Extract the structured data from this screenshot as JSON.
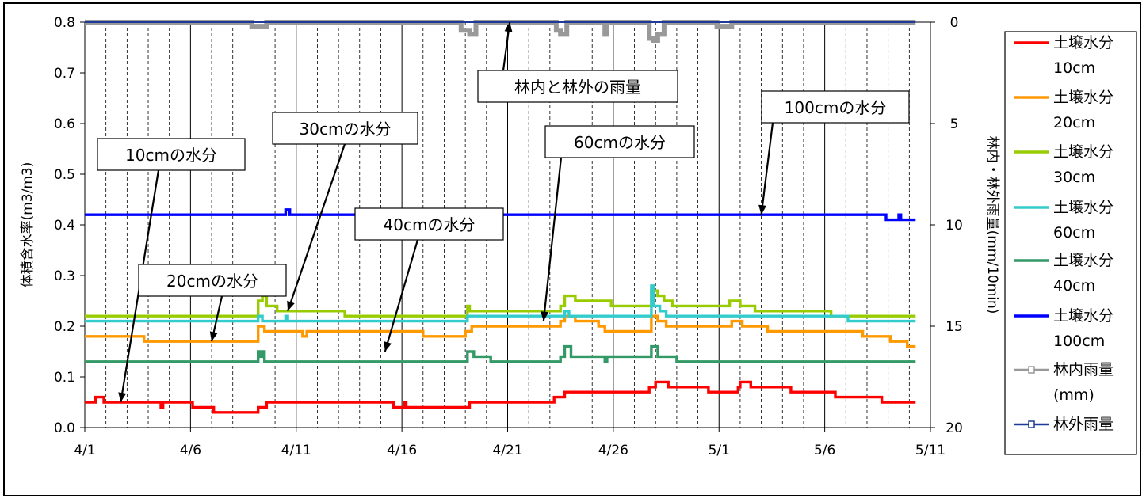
{
  "chart_data": {
    "type": "line",
    "y_left_label": "体積含水率(m3/m3)",
    "y_right_label": "林内・林外雨量(mm/10min)",
    "y_left_ticks": [
      "0.0",
      "0.1",
      "0.2",
      "0.3",
      "0.4",
      "0.5",
      "0.6",
      "0.7",
      "0.8"
    ],
    "y_right_ticks": [
      "0",
      "5",
      "10",
      "15",
      "20"
    ],
    "ylim_left": [
      0,
      0.8
    ],
    "ylim_right": [
      0,
      20
    ],
    "y_right_inverted": true,
    "x_ticks": [
      "4/1",
      "4/6",
      "4/11",
      "4/16",
      "4/21",
      "4/26",
      "5/1",
      "5/6",
      "5/11"
    ],
    "xlim_days": [
      0,
      40
    ],
    "grid": "vertical daily dashed, 5-day solid",
    "legend_position": "right",
    "series": [
      {
        "name": "土壌水分",
        "name2": "10cm",
        "color": "#ff0000",
        "points": [
          [
            0,
            0.05
          ],
          [
            0.4,
            0.05
          ],
          [
            0.5,
            0.06
          ],
          [
            0.8,
            0.06
          ],
          [
            0.9,
            0.05
          ],
          [
            3.5,
            0.05
          ],
          [
            3.6,
            0.04
          ],
          [
            3.7,
            0.05
          ],
          [
            5,
            0.05
          ],
          [
            5.1,
            0.04
          ],
          [
            6,
            0.04
          ],
          [
            6.1,
            0.03
          ],
          [
            8.1,
            0.03
          ],
          [
            8.2,
            0.04
          ],
          [
            8.5,
            0.04
          ],
          [
            8.6,
            0.05
          ],
          [
            14.5,
            0.05
          ],
          [
            14.6,
            0.04
          ],
          [
            15,
            0.04
          ],
          [
            15.1,
            0.05
          ],
          [
            15.2,
            0.04
          ],
          [
            18.1,
            0.04
          ],
          [
            18.2,
            0.05
          ],
          [
            22.1,
            0.05
          ],
          [
            22.2,
            0.06
          ],
          [
            22.6,
            0.06
          ],
          [
            22.7,
            0.07
          ],
          [
            26.5,
            0.07
          ],
          [
            26.7,
            0.08
          ],
          [
            26.9,
            0.08
          ],
          [
            27,
            0.09
          ],
          [
            27.5,
            0.09
          ],
          [
            27.6,
            0.08
          ],
          [
            29.4,
            0.08
          ],
          [
            29.5,
            0.07
          ],
          [
            30.7,
            0.07
          ],
          [
            30.9,
            0.08
          ],
          [
            31,
            0.09
          ],
          [
            31.4,
            0.09
          ],
          [
            31.5,
            0.08
          ],
          [
            33.3,
            0.08
          ],
          [
            33.4,
            0.07
          ],
          [
            35.4,
            0.07
          ],
          [
            35.5,
            0.06
          ],
          [
            37.6,
            0.06
          ],
          [
            37.7,
            0.05
          ],
          [
            39.3,
            0.05
          ]
        ]
      },
      {
        "name": "土壌水分",
        "name2": "20cm",
        "color": "#ff9900",
        "points": [
          [
            0,
            0.18
          ],
          [
            2.7,
            0.18
          ],
          [
            2.8,
            0.17
          ],
          [
            8.1,
            0.17
          ],
          [
            8.2,
            0.2
          ],
          [
            8.4,
            0.2
          ],
          [
            8.5,
            0.19
          ],
          [
            10.2,
            0.19
          ],
          [
            10.3,
            0.18
          ],
          [
            10.5,
            0.19
          ],
          [
            15.9,
            0.19
          ],
          [
            16,
            0.18
          ],
          [
            17.9,
            0.18
          ],
          [
            18,
            0.19
          ],
          [
            18.2,
            0.19
          ],
          [
            18.3,
            0.2
          ],
          [
            22.4,
            0.2
          ],
          [
            22.5,
            0.21
          ],
          [
            22.7,
            0.22
          ],
          [
            23.1,
            0.22
          ],
          [
            23.2,
            0.21
          ],
          [
            24.2,
            0.21
          ],
          [
            24.3,
            0.2
          ],
          [
            24.5,
            0.2
          ],
          [
            24.6,
            0.19
          ],
          [
            26.7,
            0.19
          ],
          [
            26.8,
            0.22
          ],
          [
            27,
            0.22
          ],
          [
            27.1,
            0.21
          ],
          [
            27.3,
            0.21
          ],
          [
            27.5,
            0.2
          ],
          [
            30.5,
            0.2
          ],
          [
            30.6,
            0.21
          ],
          [
            31,
            0.21
          ],
          [
            31.1,
            0.2
          ],
          [
            32.2,
            0.2
          ],
          [
            32.3,
            0.19
          ],
          [
            36.7,
            0.19
          ],
          [
            36.8,
            0.18
          ],
          [
            38,
            0.18
          ],
          [
            38.1,
            0.17
          ],
          [
            38.8,
            0.17
          ],
          [
            38.9,
            0.16
          ],
          [
            39.3,
            0.16
          ]
        ]
      },
      {
        "name": "土壌水分",
        "name2": "30cm",
        "color": "#99cc00",
        "points": [
          [
            0,
            0.22
          ],
          [
            8.1,
            0.22
          ],
          [
            8.2,
            0.25
          ],
          [
            8.4,
            0.26
          ],
          [
            8.6,
            0.24
          ],
          [
            9,
            0.24
          ],
          [
            9.1,
            0.23
          ],
          [
            12.2,
            0.23
          ],
          [
            12.3,
            0.22
          ],
          [
            18,
            0.22
          ],
          [
            18.1,
            0.24
          ],
          [
            18.2,
            0.23
          ],
          [
            22.4,
            0.23
          ],
          [
            22.5,
            0.24
          ],
          [
            22.7,
            0.26
          ],
          [
            23,
            0.26
          ],
          [
            23.2,
            0.25
          ],
          [
            24.8,
            0.25
          ],
          [
            24.9,
            0.24
          ],
          [
            26.7,
            0.24
          ],
          [
            26.8,
            0.27
          ],
          [
            27.1,
            0.26
          ],
          [
            27.4,
            0.25
          ],
          [
            27.8,
            0.24
          ],
          [
            30.4,
            0.24
          ],
          [
            30.5,
            0.25
          ],
          [
            30.9,
            0.25
          ],
          [
            31,
            0.24
          ],
          [
            31.6,
            0.24
          ],
          [
            31.7,
            0.23
          ],
          [
            35.2,
            0.23
          ],
          [
            35.3,
            0.22
          ],
          [
            39.3,
            0.22
          ]
        ]
      },
      {
        "name": "土壌水分",
        "name2": "60cm",
        "color": "#33cccc",
        "points": [
          [
            0,
            0.21
          ],
          [
            8.1,
            0.21
          ],
          [
            8.2,
            0.22
          ],
          [
            8.4,
            0.21
          ],
          [
            9.4,
            0.21
          ],
          [
            9.5,
            0.22
          ],
          [
            9.6,
            0.21
          ],
          [
            18,
            0.21
          ],
          [
            18.1,
            0.22
          ],
          [
            22.6,
            0.22
          ],
          [
            22.7,
            0.23
          ],
          [
            22.9,
            0.22
          ],
          [
            26.7,
            0.22
          ],
          [
            26.8,
            0.28
          ],
          [
            26.9,
            0.24
          ],
          [
            27.2,
            0.23
          ],
          [
            27.5,
            0.22
          ],
          [
            36,
            0.22
          ],
          [
            36.1,
            0.21
          ],
          [
            39.3,
            0.21
          ]
        ]
      },
      {
        "name": "土壌水分",
        "name2": "40cm",
        "color": "#339966",
        "points": [
          [
            0,
            0.13
          ],
          [
            8.1,
            0.13
          ],
          [
            8.2,
            0.15
          ],
          [
            8.3,
            0.14
          ],
          [
            8.4,
            0.15
          ],
          [
            8.5,
            0.13
          ],
          [
            18,
            0.13
          ],
          [
            18.1,
            0.15
          ],
          [
            18.4,
            0.14
          ],
          [
            19.1,
            0.14
          ],
          [
            19.2,
            0.13
          ],
          [
            22.4,
            0.13
          ],
          [
            22.5,
            0.14
          ],
          [
            22.7,
            0.16
          ],
          [
            23,
            0.14
          ],
          [
            24.5,
            0.14
          ],
          [
            24.6,
            0.13
          ],
          [
            24.7,
            0.14
          ],
          [
            26.6,
            0.14
          ],
          [
            26.8,
            0.16
          ],
          [
            27.1,
            0.14
          ],
          [
            27.9,
            0.14
          ],
          [
            28,
            0.13
          ],
          [
            39.3,
            0.13
          ]
        ]
      },
      {
        "name": "土壌水分",
        "name2": "100cm",
        "color": "#0000ff",
        "points": [
          [
            0,
            0.42
          ],
          [
            9.4,
            0.42
          ],
          [
            9.5,
            0.43
          ],
          [
            9.7,
            0.42
          ],
          [
            37.8,
            0.42
          ],
          [
            37.9,
            0.41
          ],
          [
            38.4,
            0.41
          ],
          [
            38.5,
            0.42
          ],
          [
            38.6,
            0.41
          ],
          [
            39.3,
            0.41
          ]
        ]
      },
      {
        "name": "林内雨量",
        "name2": "(mm)",
        "color": "#999999",
        "points": [
          [
            0,
            0
          ],
          [
            7.8,
            0
          ],
          [
            7.9,
            0.2
          ],
          [
            8.6,
            0
          ],
          [
            17.7,
            0
          ],
          [
            17.8,
            0.4
          ],
          [
            18.2,
            0.6
          ],
          [
            18.5,
            0
          ],
          [
            22.1,
            0
          ],
          [
            22.3,
            0.4
          ],
          [
            22.5,
            0.6
          ],
          [
            22.8,
            0
          ],
          [
            24.5,
            0
          ],
          [
            24.6,
            0.6
          ],
          [
            24.7,
            0
          ],
          [
            26.6,
            0
          ],
          [
            26.7,
            0.8
          ],
          [
            26.9,
            0.9
          ],
          [
            27.1,
            0.6
          ],
          [
            27.4,
            0
          ],
          [
            29.8,
            0
          ],
          [
            29.9,
            0.2
          ],
          [
            30.6,
            0
          ],
          [
            39.3,
            0
          ]
        ]
      },
      {
        "name": "林外雨量",
        "name2": "",
        "color": "#1f3b99",
        "points": [
          [
            0,
            0
          ],
          [
            39.3,
            0
          ]
        ]
      }
    ],
    "annotations": [
      {
        "text": "林内と林外の雨量",
        "target": [
          20.1,
          0.8
        ]
      },
      {
        "text": "100cmの水分",
        "target": [
          32,
          0.42
        ]
      },
      {
        "text": "30cmの水分",
        "target": [
          9.6,
          0.23
        ]
      },
      {
        "text": "10cmの水分",
        "target": [
          1.7,
          0.05
        ]
      },
      {
        "text": "60cmの水分",
        "target": [
          21.7,
          0.21
        ]
      },
      {
        "text": "40cmの水分",
        "target": [
          14.2,
          0.15
        ]
      },
      {
        "text": "20cmの水分",
        "target": [
          6,
          0.17
        ]
      }
    ]
  }
}
